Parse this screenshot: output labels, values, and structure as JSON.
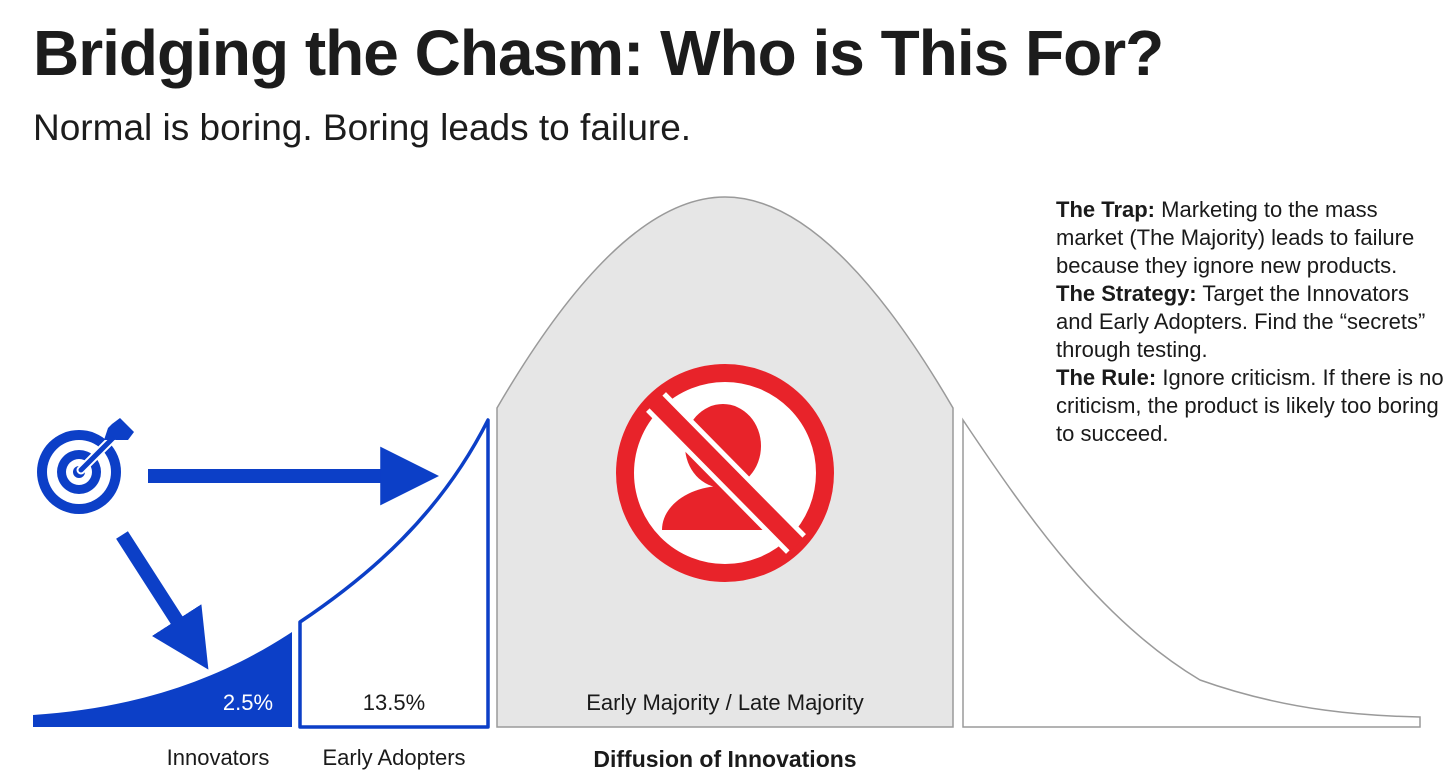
{
  "header": {
    "title": "Bridging the Chasm: Who is This For?",
    "subtitle": "Normal is boring. Boring leads to failure."
  },
  "diagram": {
    "segments": {
      "innovators": {
        "name": "Innovators",
        "percent": "2.5%"
      },
      "early_adopters": {
        "name": "Early Adopters",
        "percent": "13.5%"
      },
      "majority": {
        "name": "Early Majority / Late Majority"
      }
    },
    "caption": "Diffusion of Innovations",
    "icons": {
      "target": "target-icon",
      "forbidden": "no-person-icon"
    },
    "colors": {
      "accent_blue": "#0c3fc7",
      "majority_fill": "#e6e6e6",
      "forbidden_red": "#e8232a",
      "outline": "#9a9a9a"
    }
  },
  "notes": [
    {
      "heading": "The Trap:",
      "text": "Marketing to the mass market (The Majority) leads to failure because they ignore new products."
    },
    {
      "heading": "The Strategy:",
      "text": "Target the Innovators and Early Adopters. Find the “secrets” through testing."
    },
    {
      "heading": "The Rule:",
      "text": "Ignore criticism. If there is no criticism, the product is likely too boring to succeed."
    }
  ]
}
